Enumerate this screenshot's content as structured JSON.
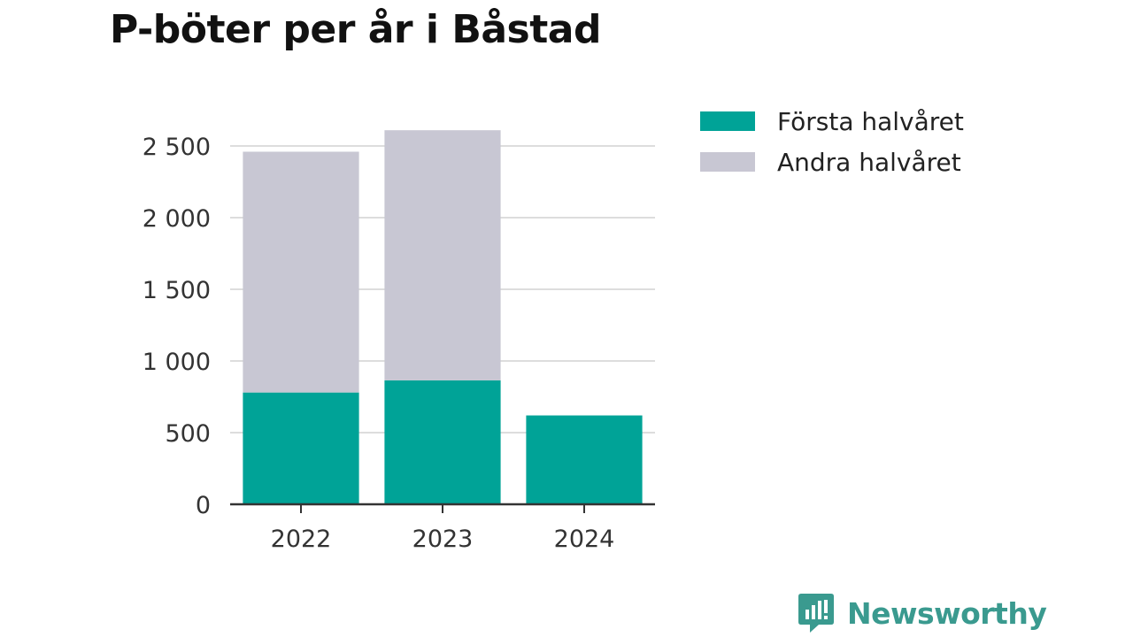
{
  "chart_data": {
    "type": "bar",
    "stacked": true,
    "title": "P-böter per år i Båstad",
    "categories": [
      "2022",
      "2023",
      "2024"
    ],
    "series": [
      {
        "name": "Första halvåret",
        "values": [
          780,
          865,
          620
        ],
        "color": "#00a397"
      },
      {
        "name": "Andra halvåret",
        "values": [
          1680,
          1745,
          0
        ],
        "color": "#c8c7d3"
      }
    ],
    "ylim": [
      0,
      2500
    ],
    "yticks": [
      0,
      500,
      1000,
      1500,
      2000,
      2500
    ],
    "ytick_labels": [
      "0",
      "500",
      "1 000",
      "1 500",
      "2 000",
      "2 500"
    ],
    "grid": true,
    "legend_position": "top-right"
  },
  "brand": {
    "name": "Newsworthy",
    "color": "#3a9a8f",
    "icon": "newsworthy-logo-icon"
  }
}
